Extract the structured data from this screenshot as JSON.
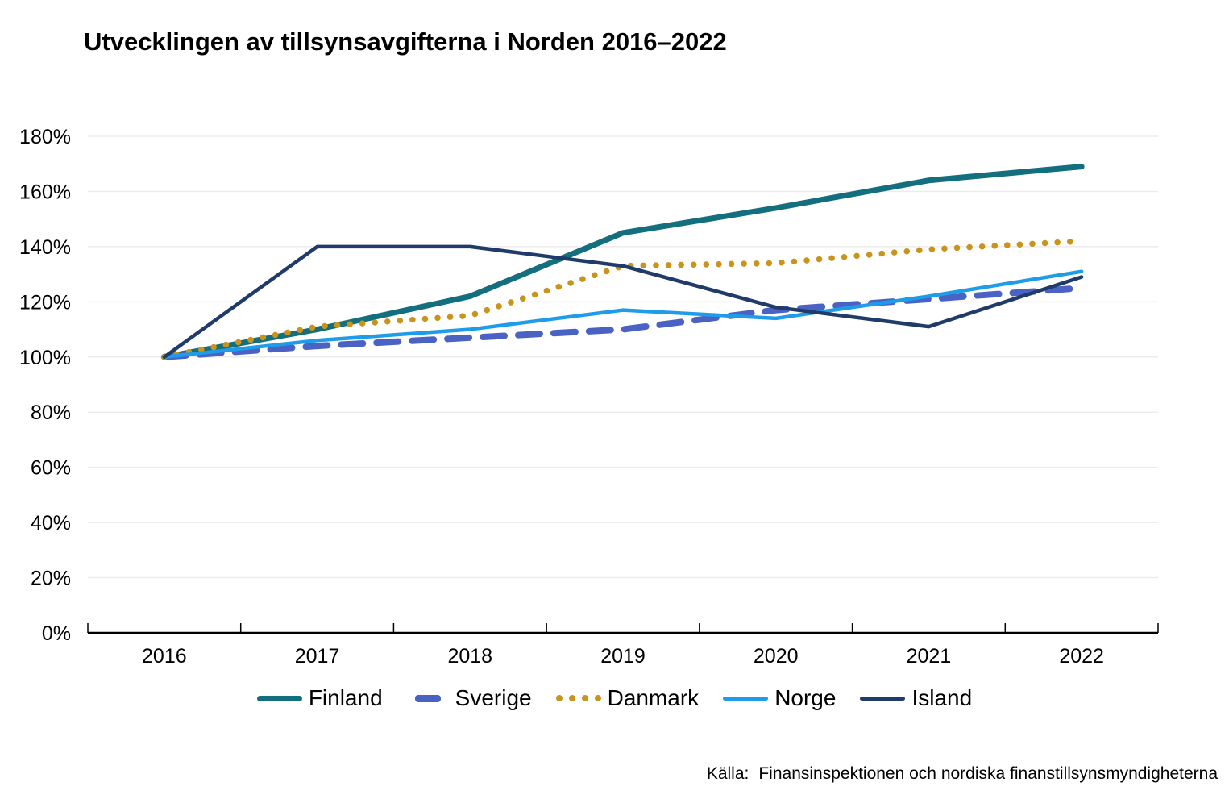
{
  "title": "Utvecklingen av tillsynsavgifterna i Norden 2016–2022",
  "source": {
    "label": "Källa:",
    "text": "Finansinspektionen och nordiska finanstillsynsmyndigheterna"
  },
  "chart_data": {
    "type": "line",
    "x": [
      "2016",
      "2017",
      "2018",
      "2019",
      "2020",
      "2021",
      "2022"
    ],
    "y_ticks": [
      "0%",
      "20%",
      "40%",
      "60%",
      "80%",
      "100%",
      "120%",
      "140%",
      "160%",
      "180%"
    ],
    "ylim": [
      0,
      180
    ],
    "grid": true,
    "legend_position": "bottom",
    "axis_color": "#000000",
    "gridline_color": "#ECECEC",
    "series": [
      {
        "name": "Finland",
        "color": "#136E7D",
        "style": "solid",
        "width": 7,
        "values": [
          100,
          110,
          122,
          145,
          154,
          164,
          169
        ]
      },
      {
        "name": "Sverige",
        "color": "#4A62C4",
        "style": "dashed",
        "width": 8,
        "values": [
          100,
          104,
          107,
          110,
          117,
          121,
          125
        ]
      },
      {
        "name": "Danmark",
        "color": "#C9941C",
        "style": "dotted",
        "width": 7.5,
        "values": [
          100,
          111,
          115,
          133,
          134,
          139,
          142
        ]
      },
      {
        "name": "Norge",
        "color": "#1E9BE9",
        "style": "solid",
        "width": 4.5,
        "values": [
          100,
          106,
          110,
          117,
          114,
          122,
          131
        ]
      },
      {
        "name": "Island",
        "color": "#203A69",
        "style": "solid",
        "width": 4.5,
        "values": [
          100,
          140,
          140,
          133,
          118,
          111,
          129
        ]
      }
    ]
  }
}
